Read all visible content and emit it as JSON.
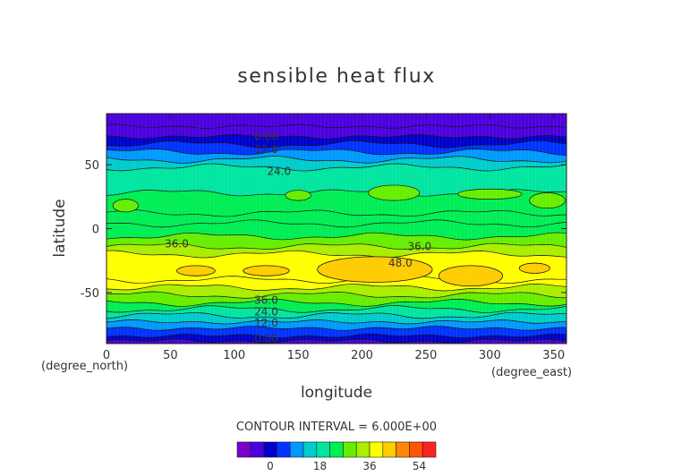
{
  "chart_data": {
    "type": "heatmap",
    "title": "sensible heat flux",
    "xlabel": "longitude",
    "ylabel": "latitude",
    "x_unit": "(degree_east)",
    "y_unit": "(degree_north)",
    "xlim": [
      0,
      360
    ],
    "ylim": [
      -90,
      90
    ],
    "x_ticks": [
      0,
      50,
      100,
      150,
      200,
      250,
      300,
      350
    ],
    "y_ticks": [
      -50,
      0,
      50
    ],
    "contour_interval_text": "CONTOUR INTERVAL = 6.000E+00",
    "contour_labels": [
      {
        "text": "0.00",
        "lon": 125,
        "lat": 72
      },
      {
        "text": "12.0",
        "lon": 125,
        "lat": 62
      },
      {
        "text": "24.0",
        "lon": 135,
        "lat": 45
      },
      {
        "text": "36.0",
        "lon": 55,
        "lat": -12
      },
      {
        "text": "36.0",
        "lon": 245,
        "lat": -14
      },
      {
        "text": "48.0",
        "lon": 230,
        "lat": -27
      },
      {
        "text": "36.0",
        "lon": 125,
        "lat": -56
      },
      {
        "text": "24.0",
        "lon": 125,
        "lat": -65
      },
      {
        "text": "12.0",
        "lon": 125,
        "lat": -74
      },
      {
        "text": "0.00",
        "lon": 125,
        "lat": -86
      }
    ],
    "bands_lat_value": [
      [
        90,
        -6
      ],
      [
        80,
        -3
      ],
      [
        72,
        0
      ],
      [
        66,
        6
      ],
      [
        60,
        12
      ],
      [
        54,
        18
      ],
      [
        48,
        24
      ],
      [
        28,
        30
      ],
      [
        12,
        30
      ],
      [
        4,
        30
      ],
      [
        -6,
        36
      ],
      [
        -14,
        42
      ],
      [
        -20,
        48
      ],
      [
        -40,
        48
      ],
      [
        -46,
        42
      ],
      [
        -52,
        36
      ],
      [
        -58,
        30
      ],
      [
        -63,
        24
      ],
      [
        -68,
        18
      ],
      [
        -73,
        12
      ],
      [
        -78,
        6
      ],
      [
        -84,
        0
      ],
      [
        -88,
        -3
      ],
      [
        -90,
        -6
      ]
    ],
    "high_cells": [
      {
        "lon": 70,
        "lat": -33,
        "rlon": 15,
        "rlat": 4,
        "value": 54
      },
      {
        "lon": 125,
        "lat": -33,
        "rlon": 18,
        "rlat": 4,
        "value": 54
      },
      {
        "lon": 210,
        "lat": -32,
        "rlon": 45,
        "rlat": 10,
        "value": 54
      },
      {
        "lon": 285,
        "lat": -37,
        "rlon": 25,
        "rlat": 8,
        "value": 54
      },
      {
        "lon": 335,
        "lat": -31,
        "rlon": 12,
        "rlat": 4,
        "value": 54
      }
    ],
    "colorbar": {
      "min": -12,
      "max": 60,
      "step": 6,
      "ticks": [
        "0",
        "18",
        "36",
        "54"
      ],
      "colors": [
        "#7a00cc",
        "#4b00dd",
        "#0000cc",
        "#0033ff",
        "#0099ff",
        "#00cccc",
        "#00e5a0",
        "#00ee55",
        "#66ee00",
        "#aaee00",
        "#ffff00",
        "#ffcc00",
        "#ff8800",
        "#ff5500",
        "#ff2222"
      ]
    }
  }
}
